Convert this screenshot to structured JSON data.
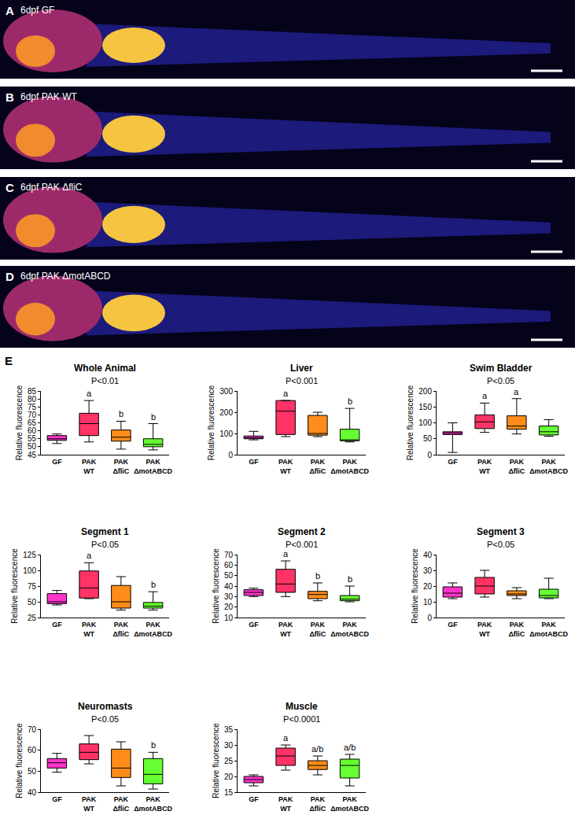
{
  "image_panels": [
    {
      "letter": "A",
      "label": "6dpf GF"
    },
    {
      "letter": "B",
      "label": "6dpf PAK WT"
    },
    {
      "letter": "C",
      "label": "6dpf PAK ΔfliC"
    },
    {
      "letter": "D",
      "label": "6dpf PAK ΔmotABCD"
    }
  ],
  "plots_label": "E",
  "chart_data": [
    {
      "type": "box",
      "title": "Whole Animal",
      "subtitle": "P<0.01",
      "y_label": "Relative fluorescence",
      "categories": [
        "GF",
        "PAK WT",
        "PAK ΔfliC",
        "PAK ΔmotABCD"
      ],
      "colors": [
        "#ff33cc",
        "#ff3366",
        "#ff8c1a",
        "#66ff33"
      ],
      "lowerfence": [
        52,
        53,
        48.5,
        48
      ],
      "q1": [
        54,
        57,
        53.5,
        50
      ],
      "median": [
        55,
        64.5,
        56,
        51.5
      ],
      "q3": [
        57,
        71,
        60.5,
        55
      ],
      "upperfence": [
        58,
        79,
        66,
        64.5
      ],
      "letters": [
        null,
        "a",
        "b",
        "b"
      ],
      "ylim": [
        45,
        85
      ],
      "yticks": [
        45,
        50,
        55,
        60,
        65,
        70,
        75,
        80,
        85
      ]
    },
    {
      "type": "box",
      "title": "Liver",
      "subtitle": "P<0.001",
      "y_label": "Relative fluorescence",
      "categories": [
        "GF",
        "PAK WT",
        "PAK ΔfliC",
        "PAK ΔmotABCD"
      ],
      "colors": [
        "#ff33cc",
        "#ff3366",
        "#ff8c1a",
        "#66ff33"
      ],
      "lowerfence": [
        70,
        85,
        85,
        60
      ],
      "q1": [
        75,
        95,
        92,
        65
      ],
      "median": [
        80,
        205,
        100,
        70
      ],
      "q3": [
        88,
        255,
        185,
        120
      ],
      "upperfence": [
        110,
        255,
        200,
        218
      ],
      "letters": [
        null,
        "a",
        null,
        "b"
      ],
      "ylim": [
        0,
        300
      ],
      "yticks": [
        0,
        100,
        200,
        300
      ]
    },
    {
      "type": "box",
      "title": "Swim Bladder",
      "subtitle": "P<0.05",
      "y_label": "Relative fluorescence",
      "categories": [
        "GF",
        "PAK WT",
        "PAK ΔfliC",
        "PAK ΔmotABCD"
      ],
      "colors": [
        "#ff33cc",
        "#ff3366",
        "#ff8c1a",
        "#66ff33"
      ],
      "lowerfence": [
        7,
        70,
        65,
        58
      ],
      "q1": [
        63,
        82,
        80,
        62
      ],
      "median": [
        68,
        103,
        90,
        72
      ],
      "q3": [
        72,
        125,
        122,
        90
      ],
      "upperfence": [
        100,
        162,
        176,
        110
      ],
      "letters": [
        null,
        "a",
        "a",
        null
      ],
      "ylim": [
        0,
        200
      ],
      "yticks": [
        0,
        50,
        100,
        150,
        200
      ]
    },
    {
      "type": "box",
      "title": "Segment 1",
      "subtitle": "P<0.05",
      "y_label": "Relative fluorescence",
      "categories": [
        "GF",
        "PAK WT",
        "PAK ΔfliC",
        "PAK ΔmotABCD"
      ],
      "colors": [
        "#ff33cc",
        "#ff3366",
        "#ff8c1a",
        "#66ff33"
      ],
      "lowerfence": [
        45,
        55,
        37,
        37
      ],
      "q1": [
        47,
        56,
        40,
        40
      ],
      "median": [
        50,
        72,
        50,
        43
      ],
      "q3": [
        63,
        99,
        76,
        49
      ],
      "upperfence": [
        68,
        112,
        90,
        66
      ],
      "letters": [
        null,
        "a",
        null,
        "b"
      ],
      "ylim": [
        25,
        125
      ],
      "yticks": [
        25,
        50,
        75,
        100,
        125
      ]
    },
    {
      "type": "box",
      "title": "Segment 2",
      "subtitle": "P<0.001",
      "y_label": "Relative fluorescence",
      "categories": [
        "GF",
        "PAK WT",
        "PAK ΔfliC",
        "PAK ΔmotABCD"
      ],
      "colors": [
        "#ff33cc",
        "#ff3366",
        "#ff8c1a",
        "#66ff33"
      ],
      "lowerfence": [
        30,
        30,
        26,
        25
      ],
      "q1": [
        31,
        34,
        28,
        26
      ],
      "median": [
        34,
        42,
        32,
        27.5
      ],
      "q3": [
        36.5,
        56,
        35,
        31
      ],
      "upperfence": [
        38,
        64,
        43,
        40
      ],
      "letters": [
        null,
        "a",
        "b",
        "b"
      ],
      "ylim": [
        10,
        70
      ],
      "yticks": [
        10,
        20,
        30,
        40,
        50,
        60,
        70
      ]
    },
    {
      "type": "box",
      "title": "Segment 3",
      "subtitle": "P<0.05",
      "y_label": "Relative fluorescence",
      "categories": [
        "GF",
        "PAK WT",
        "PAK ΔfliC",
        "PAK ΔmotABCD"
      ],
      "colors": [
        "#ff33cc",
        "#ff3366",
        "#ff8c1a",
        "#66ff33"
      ],
      "lowerfence": [
        12,
        13,
        12,
        12
      ],
      "q1": [
        13,
        15,
        14,
        12.5
      ],
      "median": [
        15.5,
        20,
        15,
        14
      ],
      "q3": [
        19.5,
        25.5,
        17,
        18
      ],
      "upperfence": [
        22,
        30,
        19,
        25
      ],
      "letters": [
        null,
        null,
        null,
        null
      ],
      "ylim": [
        0,
        40
      ],
      "yticks": [
        0,
        10,
        20,
        30,
        40
      ]
    },
    {
      "type": "box",
      "title": "Neuromasts",
      "subtitle": "P<0.05",
      "y_label": "Relative fluorescence",
      "categories": [
        "GF",
        "PAK WT",
        "PAK ΔfliC",
        "PAK ΔmotABCD"
      ],
      "colors": [
        "#ff33cc",
        "#ff3366",
        "#ff8c1a",
        "#66ff33"
      ],
      "lowerfence": [
        49.5,
        53.5,
        43,
        41.5
      ],
      "q1": [
        51.5,
        55.5,
        47,
        44
      ],
      "median": [
        54,
        59,
        51.5,
        48.5
      ],
      "q3": [
        56,
        63,
        60.5,
        56
      ],
      "upperfence": [
        58.5,
        67,
        64,
        59
      ],
      "letters": [
        null,
        null,
        null,
        "b"
      ],
      "ylim": [
        40,
        70
      ],
      "yticks": [
        40,
        50,
        60,
        70
      ]
    },
    {
      "type": "box",
      "title": "Muscle",
      "subtitle": "P<0.0001",
      "y_label": "Relative fluorescence",
      "categories": [
        "GF",
        "PAK WT",
        "PAK ΔfliC",
        "PAK ΔmotABCD"
      ],
      "colors": [
        "#ff33cc",
        "#ff3366",
        "#ff8c1a",
        "#66ff33"
      ],
      "lowerfence": [
        17,
        22,
        20.5,
        17
      ],
      "q1": [
        18,
        23.5,
        22.2,
        19.5
      ],
      "median": [
        19,
        26.5,
        23.5,
        23.5
      ],
      "q3": [
        20,
        29,
        25,
        25.5
      ],
      "upperfence": [
        20.5,
        30,
        26.5,
        27
      ],
      "letters": [
        null,
        "a",
        "a/b",
        "a/b"
      ],
      "ylim": [
        15,
        35
      ],
      "yticks": [
        15,
        20,
        25,
        30,
        35
      ]
    }
  ]
}
